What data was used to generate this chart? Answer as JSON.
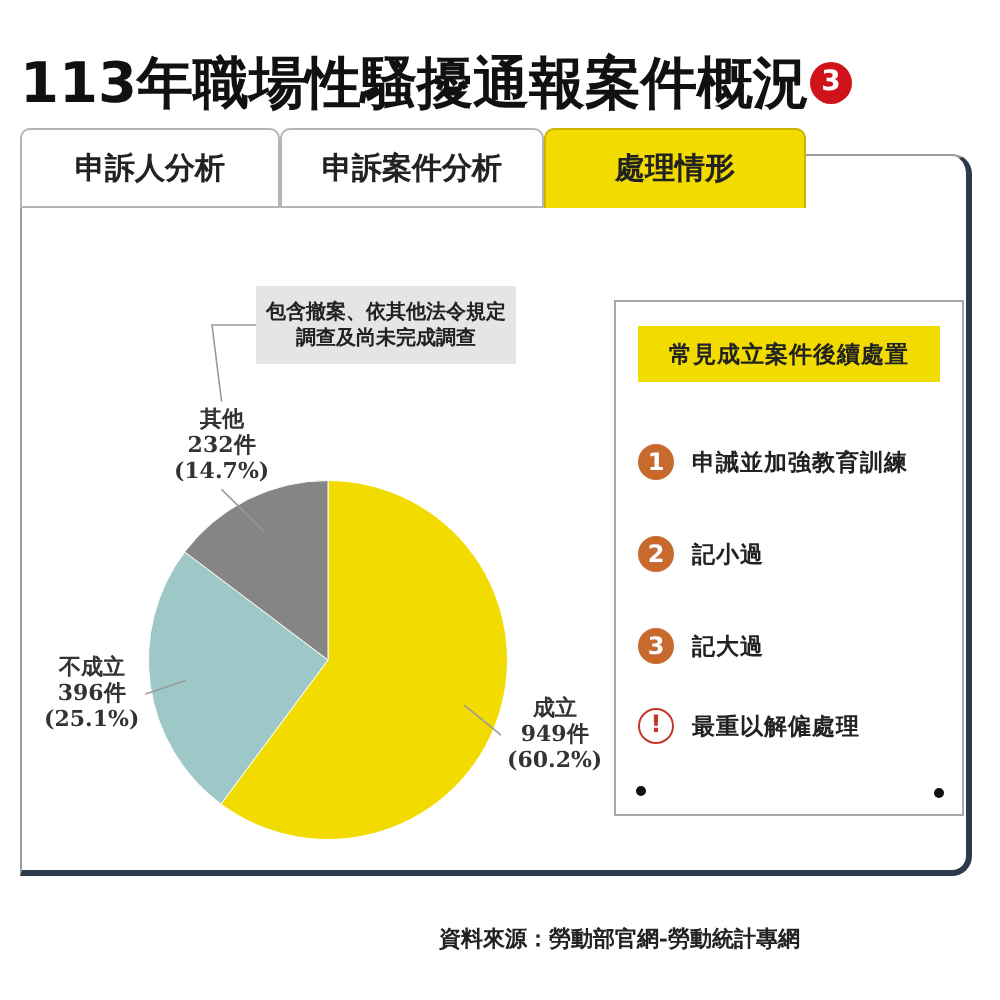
{
  "chart_data": [
    {
      "type": "pie",
      "title": "113年職場性騷擾通報案件概況",
      "categories": [
        "成立",
        "不成立",
        "其他"
      ],
      "values": [
        949,
        396,
        232
      ],
      "colors": [
        "#f2dc00",
        "#9ec8c8",
        "#858585"
      ],
      "value_labels": [
        "949件\n(60.2%)",
        "396件\n(25.1%)",
        "232件\n(14.7%)"
      ],
      "annotations": [
        "3",
        "申訴人分析",
        "申訴案件分析",
        "處理情形",
        {
          "text": "包含撤案、依其他法令規定調查及尚未完成調查",
          "x": "其他"
        },
        "資料來源：勞動部官網-勞動統計專網"
      ]
    },
    {
      "type": "other",
      "title": "常見成立案件後續處置",
      "annotations": [
        "1",
        "申誡並加強教育訓練",
        "2",
        "記小過",
        "3",
        "記大過",
        "!",
        "最重以解僱處理"
      ]
    }
  ]
}
